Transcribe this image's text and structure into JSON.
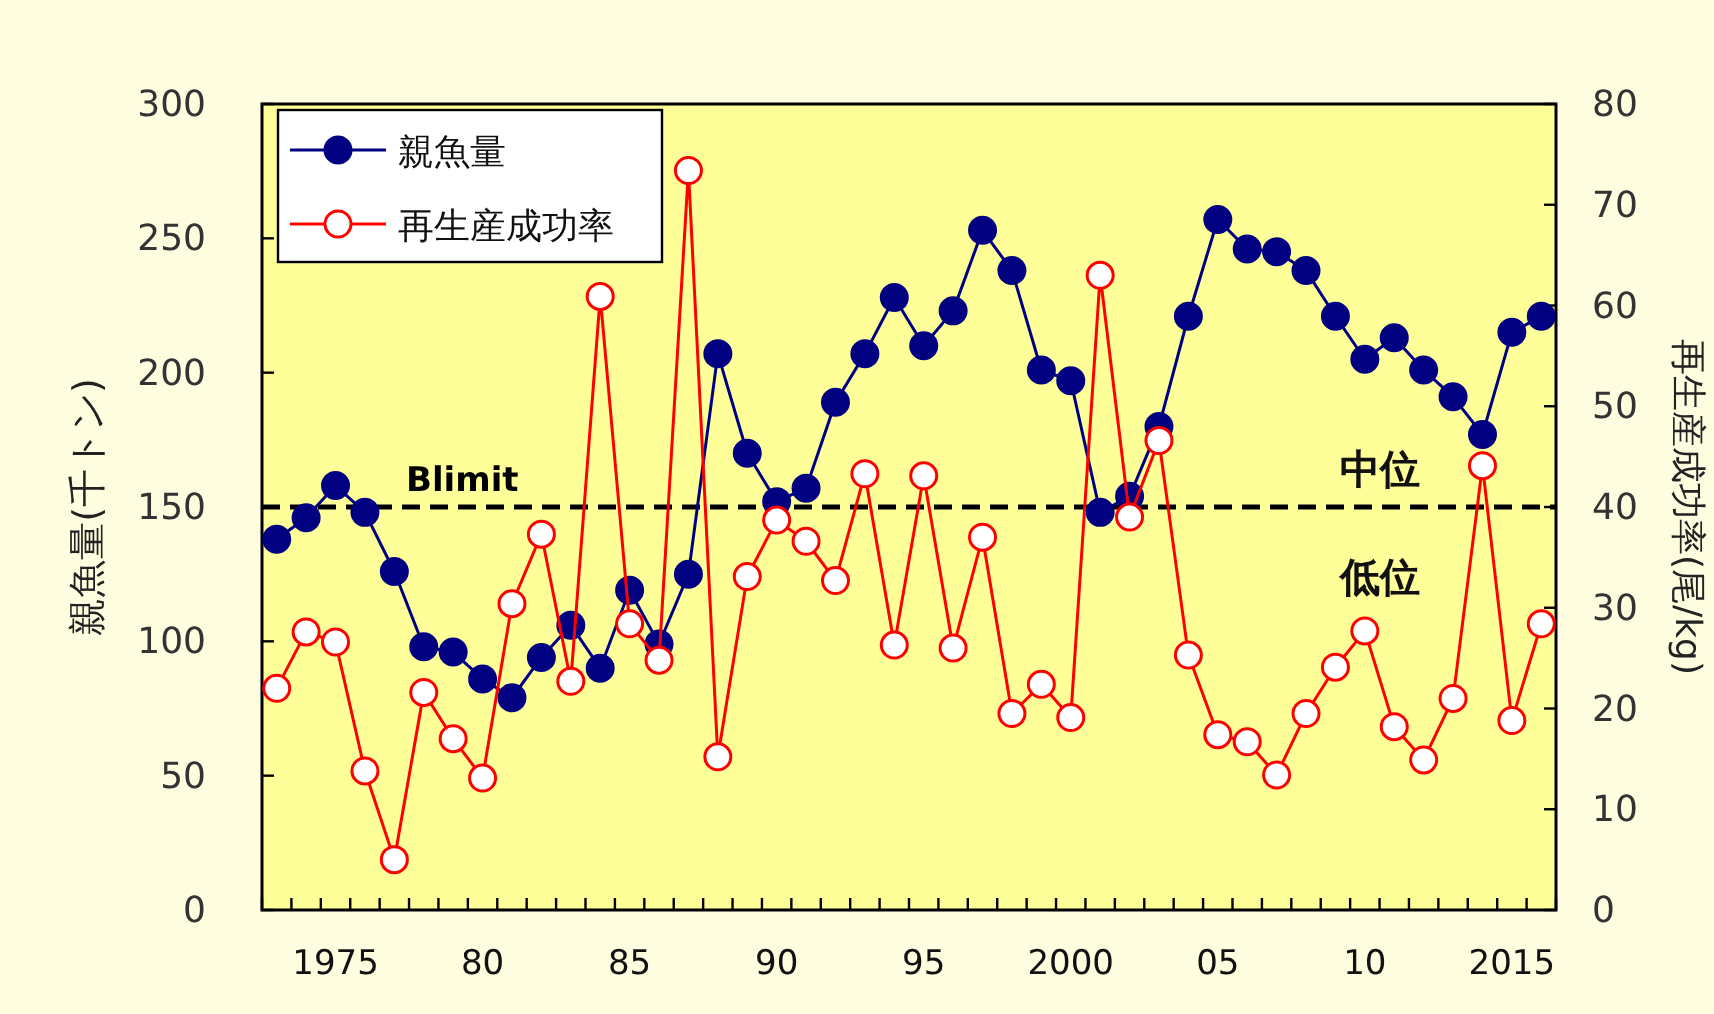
{
  "chart_data": {
    "type": "line",
    "ylabel": "親魚量(千トン)",
    "y2label": "再生産成功率(尾/kg)",
    "x": [
      1973,
      1974,
      1975,
      1976,
      1977,
      1978,
      1979,
      1980,
      1981,
      1982,
      1983,
      1984,
      1985,
      1986,
      1987,
      1988,
      1989,
      1990,
      1991,
      1992,
      1993,
      1994,
      1995,
      1996,
      1997,
      1998,
      1999,
      2000,
      2001,
      2002,
      2003,
      2004,
      2005,
      2006,
      2007,
      2008,
      2009,
      2010,
      2011,
      2012,
      2013,
      2014,
      2015,
      2016
    ],
    "xlim": [
      1972.5,
      2016.5
    ],
    "xticks": [
      {
        "value": 1975,
        "label": "1975"
      },
      {
        "value": 1980,
        "label": "80"
      },
      {
        "value": 1985,
        "label": "85"
      },
      {
        "value": 1990,
        "label": "90"
      },
      {
        "value": 1995,
        "label": "95"
      },
      {
        "value": 2000,
        "label": "2000"
      },
      {
        "value": 2005,
        "label": "05"
      },
      {
        "value": 2010,
        "label": "10"
      },
      {
        "value": 2015,
        "label": "2015"
      },
      {
        "value": 1972.5,
        "label": null
      },
      {
        "value": 1973.5,
        "label": null
      },
      {
        "value": 1974.5,
        "label": null
      },
      {
        "value": 1975.5,
        "label": null
      },
      {
        "value": 1976.5,
        "label": null
      },
      {
        "value": 1977.5,
        "label": null
      },
      {
        "value": 1978.5,
        "label": null
      },
      {
        "value": 1979.5,
        "label": null
      },
      {
        "value": 1980.5,
        "label": null
      },
      {
        "value": 1981.5,
        "label": null
      },
      {
        "value": 1982.5,
        "label": null
      },
      {
        "value": 1983.5,
        "label": null
      },
      {
        "value": 1984.5,
        "label": null
      },
      {
        "value": 1985.5,
        "label": null
      },
      {
        "value": 1986.5,
        "label": null
      },
      {
        "value": 1987.5,
        "label": null
      },
      {
        "value": 1988.5,
        "label": null
      },
      {
        "value": 1989.5,
        "label": null
      },
      {
        "value": 1990.5,
        "label": null
      },
      {
        "value": 1991.5,
        "label": null
      },
      {
        "value": 1992.5,
        "label": null
      },
      {
        "value": 1993.5,
        "label": null
      },
      {
        "value": 1994.5,
        "label": null
      },
      {
        "value": 1995.5,
        "label": null
      },
      {
        "value": 1996.5,
        "label": null
      },
      {
        "value": 1997.5,
        "label": null
      },
      {
        "value": 1998.5,
        "label": null
      },
      {
        "value": 1999.5,
        "label": null
      },
      {
        "value": 2000.5,
        "label": null
      },
      {
        "value": 2001.5,
        "label": null
      },
      {
        "value": 2002.5,
        "label": null
      },
      {
        "value": 2003.5,
        "label": null
      },
      {
        "value": 2004.5,
        "label": null
      },
      {
        "value": 2005.5,
        "label": null
      },
      {
        "value": 2006.5,
        "label": null
      },
      {
        "value": 2007.5,
        "label": null
      },
      {
        "value": 2008.5,
        "label": null
      },
      {
        "value": 2009.5,
        "label": null
      },
      {
        "value": 2010.5,
        "label": null
      },
      {
        "value": 2011.5,
        "label": null
      },
      {
        "value": 2012.5,
        "label": null
      },
      {
        "value": 2013.5,
        "label": null
      },
      {
        "value": 2014.5,
        "label": null
      },
      {
        "value": 2015.5,
        "label": null
      },
      {
        "value": 2016.5,
        "label": null
      }
    ],
    "ylim": [
      0,
      300
    ],
    "yticks": [
      0,
      50,
      100,
      150,
      200,
      250,
      300
    ],
    "y2lim": [
      0,
      80
    ],
    "y2ticks": [
      0,
      10,
      20,
      30,
      40,
      50,
      60,
      70,
      80
    ],
    "series": [
      {
        "name": "親魚量",
        "color": "#000080",
        "values": [
          138,
          146,
          158,
          148,
          126,
          98,
          96,
          86,
          79,
          94,
          106,
          90,
          119,
          99,
          125,
          207,
          170,
          152,
          157,
          189,
          207,
          228,
          210,
          223,
          253,
          238,
          201,
          197,
          148,
          154,
          180,
          221,
          257,
          246,
          245,
          238,
          221,
          205,
          213,
          201,
          191,
          177,
          215,
          221
        ]
      },
      {
        "name": "再生産成功率",
        "color": "#ff0000",
        "axis": "y2",
        "values": [
          22,
          27.6,
          26.6,
          13.8,
          5,
          21.6,
          17,
          13.1,
          30.4,
          37.3,
          22.7,
          60.9,
          28.4,
          24.8,
          73.4,
          15.2,
          33.1,
          38.7,
          36.6,
          32.7,
          43.3,
          26.3,
          43.1,
          26,
          37,
          19.5,
          22.4,
          19.1,
          63,
          39,
          46.6,
          25.3,
          17.4,
          16.7,
          13.4,
          19.5,
          24.1,
          27.7,
          18.2,
          14.9,
          21,
          44.1,
          18.8,
          28.4
        ]
      }
    ],
    "ref_lines": [
      {
        "axis": "y",
        "value": 150,
        "label": "Blimit",
        "color": "#000000",
        "line_style": "dashed"
      }
    ],
    "annotations": [
      "中位",
      "低位"
    ],
    "legend": "top left",
    "marker": "circle",
    "line_style": "solid"
  }
}
